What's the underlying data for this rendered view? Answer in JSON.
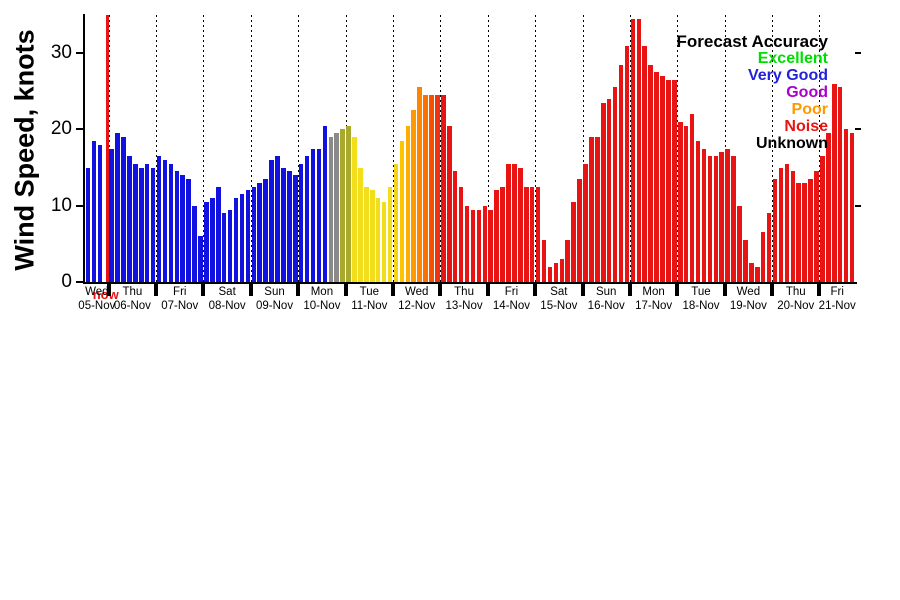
{
  "chart_data": {
    "type": "bar",
    "ylabel": "Wind Speed, knots",
    "ylim": [
      0,
      35
    ],
    "yticks": [
      0,
      10,
      20,
      30
    ],
    "grid": "vertical-dotted-at-day-boundaries",
    "now_marker": {
      "label": "now",
      "color": "#e81414",
      "slot": 3
    },
    "legend": {
      "title": "Forecast Accuracy",
      "position": "top-right",
      "entries": [
        {
          "label": "Excellent",
          "color": "#00dd00"
        },
        {
          "label": "Very Good",
          "color": "#2222dd"
        },
        {
          "label": "Good",
          "color": "#aa00cc"
        },
        {
          "label": "Poor",
          "color": "#ff9900"
        },
        {
          "label": "Noise",
          "color": "#e81414"
        },
        {
          "label": "Unknown",
          "color": "#000000"
        }
      ]
    },
    "palette": {
      "blue": "#1212e0",
      "gray": "#8a8a8a",
      "olive": "#a9a92e",
      "yellow": "#f2de1a",
      "gold": "#f4d414",
      "or1": "#fdc400",
      "or2": "#ffae00",
      "or3": "#ff9900",
      "or4": "#ff8400",
      "or5": "#fb6e00",
      "or6": "#f55200",
      "or7": "#ee3311",
      "red": "#e81414"
    },
    "days": [
      {
        "day": "Wed",
        "date": "05-Nov",
        "slots": 4,
        "bars": [
          [
            15,
            "blue"
          ],
          [
            18.5,
            "blue"
          ],
          [
            18,
            "blue"
          ]
        ]
      },
      {
        "day": "Thu",
        "date": "06-Nov",
        "bars": [
          [
            17.5,
            "blue"
          ],
          [
            19.5,
            "blue"
          ],
          [
            19,
            "blue"
          ],
          [
            16.5,
            "blue"
          ],
          [
            15.5,
            "blue"
          ],
          [
            15,
            "blue"
          ],
          [
            15.5,
            "blue"
          ],
          [
            15,
            "blue"
          ]
        ]
      },
      {
        "day": "Fri",
        "date": "07-Nov",
        "bars": [
          [
            16.5,
            "blue"
          ],
          [
            16,
            "blue"
          ],
          [
            15.5,
            "blue"
          ],
          [
            14.5,
            "blue"
          ],
          [
            14,
            "blue"
          ],
          [
            13.5,
            "blue"
          ],
          [
            10,
            "blue"
          ],
          [
            6,
            "blue"
          ]
        ]
      },
      {
        "day": "Sat",
        "date": "08-Nov",
        "bars": [
          [
            10.5,
            "blue"
          ],
          [
            11,
            "blue"
          ],
          [
            12.5,
            "blue"
          ],
          [
            9,
            "blue"
          ],
          [
            9.5,
            "blue"
          ],
          [
            11,
            "blue"
          ],
          [
            11.5,
            "blue"
          ],
          [
            12,
            "blue"
          ]
        ]
      },
      {
        "day": "Sun",
        "date": "09-Nov",
        "bars": [
          [
            12.5,
            "blue"
          ],
          [
            13,
            "blue"
          ],
          [
            13.5,
            "blue"
          ],
          [
            16,
            "blue"
          ],
          [
            16.5,
            "blue"
          ],
          [
            15,
            "blue"
          ],
          [
            14.5,
            "blue"
          ],
          [
            14,
            "blue"
          ]
        ]
      },
      {
        "day": "Mon",
        "date": "10-Nov",
        "bars": [
          [
            15.5,
            "blue"
          ],
          [
            16.5,
            "blue"
          ],
          [
            17.5,
            "blue"
          ],
          [
            17.5,
            "blue"
          ],
          [
            20.5,
            "blue"
          ],
          [
            19,
            "gray"
          ],
          [
            19.5,
            "gray"
          ],
          [
            20,
            "olive"
          ]
        ]
      },
      {
        "day": "Tue",
        "date": "11-Nov",
        "bars": [
          [
            20.5,
            "olive"
          ],
          [
            19,
            "yellow"
          ],
          [
            15,
            "yellow"
          ],
          [
            12.5,
            "yellow"
          ],
          [
            12,
            "yellow"
          ],
          [
            11,
            "yellow"
          ],
          [
            10.5,
            "yellow"
          ],
          [
            12.5,
            "yellow"
          ]
        ]
      },
      {
        "day": "Wed",
        "date": "12-Nov",
        "bars": [
          [
            15.5,
            "gold"
          ],
          [
            18.5,
            "or1"
          ],
          [
            20.5,
            "or2"
          ],
          [
            22.5,
            "or3"
          ],
          [
            25.5,
            "or4"
          ],
          [
            24.5,
            "or5"
          ],
          [
            24.5,
            "or6"
          ],
          [
            24.5,
            "or7"
          ]
        ]
      },
      {
        "day": "Thu",
        "date": "13-Nov",
        "bars": [
          [
            24.5,
            "red"
          ],
          [
            20.5,
            "red"
          ],
          [
            14.5,
            "red"
          ],
          [
            12.5,
            "red"
          ],
          [
            10,
            "red"
          ],
          [
            9.5,
            "red"
          ],
          [
            9.5,
            "red"
          ],
          [
            10,
            "red"
          ]
        ]
      },
      {
        "day": "Fri",
        "date": "14-Nov",
        "bars": [
          [
            9.5,
            "red"
          ],
          [
            12,
            "red"
          ],
          [
            12.5,
            "red"
          ],
          [
            15.5,
            "red"
          ],
          [
            15.5,
            "red"
          ],
          [
            15,
            "red"
          ],
          [
            12.5,
            "red"
          ],
          [
            12.5,
            "red"
          ]
        ]
      },
      {
        "day": "Sat",
        "date": "15-Nov",
        "bars": [
          [
            12.5,
            "red"
          ],
          [
            5.5,
            "red"
          ],
          [
            2,
            "red"
          ],
          [
            2.5,
            "red"
          ],
          [
            3,
            "red"
          ],
          [
            5.5,
            "red"
          ],
          [
            10.5,
            "red"
          ],
          [
            13.5,
            "red"
          ]
        ]
      },
      {
        "day": "Sun",
        "date": "16-Nov",
        "bars": [
          [
            15.5,
            "red"
          ],
          [
            19,
            "red"
          ],
          [
            19,
            "red"
          ],
          [
            23.5,
            "red"
          ],
          [
            24,
            "red"
          ],
          [
            25.5,
            "red"
          ],
          [
            28.5,
            "red"
          ],
          [
            31,
            "red"
          ]
        ]
      },
      {
        "day": "Mon",
        "date": "17-Nov",
        "bars": [
          [
            34.5,
            "red"
          ],
          [
            34.5,
            "red"
          ],
          [
            31,
            "red"
          ],
          [
            28.5,
            "red"
          ],
          [
            27.5,
            "red"
          ],
          [
            27,
            "red"
          ],
          [
            26.5,
            "red"
          ],
          [
            26.5,
            "red"
          ]
        ]
      },
      {
        "day": "Tue",
        "date": "18-Nov",
        "bars": [
          [
            21,
            "red"
          ],
          [
            20.5,
            "red"
          ],
          [
            22,
            "red"
          ],
          [
            18.5,
            "red"
          ],
          [
            17.5,
            "red"
          ],
          [
            16.5,
            "red"
          ],
          [
            16.5,
            "red"
          ],
          [
            17,
            "red"
          ]
        ]
      },
      {
        "day": "Wed",
        "date": "19-Nov",
        "bars": [
          [
            17.5,
            "red"
          ],
          [
            16.5,
            "red"
          ],
          [
            10,
            "red"
          ],
          [
            5.5,
            "red"
          ],
          [
            2.5,
            "red"
          ],
          [
            2,
            "red"
          ],
          [
            6.5,
            "red"
          ],
          [
            9,
            "red"
          ]
        ]
      },
      {
        "day": "Thu",
        "date": "20-Nov",
        "bars": [
          [
            13.5,
            "red"
          ],
          [
            15,
            "red"
          ],
          [
            15.5,
            "red"
          ],
          [
            14.5,
            "red"
          ],
          [
            13,
            "red"
          ],
          [
            13,
            "red"
          ],
          [
            13.5,
            "red"
          ],
          [
            14.5,
            "red"
          ]
        ]
      },
      {
        "day": "Fri",
        "date": "21-Nov",
        "bars": [
          [
            16.5,
            "red"
          ],
          [
            19.5,
            "red"
          ],
          [
            26,
            "red"
          ],
          [
            25.5,
            "red"
          ],
          [
            20,
            "red"
          ],
          [
            19.5,
            "red"
          ]
        ]
      }
    ]
  }
}
